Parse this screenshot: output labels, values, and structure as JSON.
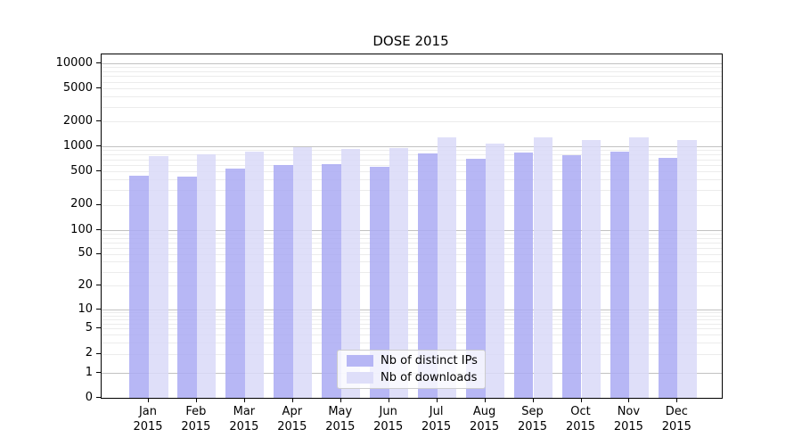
{
  "chart_data": {
    "type": "bar",
    "title": "DOSE 2015",
    "categories": [
      "Jan",
      "Feb",
      "Mar",
      "Apr",
      "May",
      "Jun",
      "Jul",
      "Aug",
      "Sep",
      "Oct",
      "Nov",
      "Dec"
    ],
    "year_label": "2015",
    "series": [
      {
        "name": "Nb of distinct IPs",
        "color": "#aaaaf3",
        "values": [
          450,
          435,
          545,
          605,
          620,
          570,
          825,
          715,
          840,
          780,
          865,
          725
        ]
      },
      {
        "name": "Nb of downloads",
        "color": "#d9d9f8",
        "values": [
          770,
          795,
          860,
          985,
          940,
          960,
          1290,
          1075,
          1295,
          1200,
          1290,
          1185
        ]
      }
    ],
    "yscale": "symlog",
    "yticks": [
      0,
      1,
      2,
      5,
      10,
      20,
      50,
      100,
      200,
      500,
      1000,
      2000,
      5000,
      10000
    ],
    "ylim": [
      0,
      12000
    ],
    "grid": true,
    "legend_position": "lower center",
    "grid_major_color": "#c2c2c2",
    "grid_minor_color": "#ececec"
  }
}
